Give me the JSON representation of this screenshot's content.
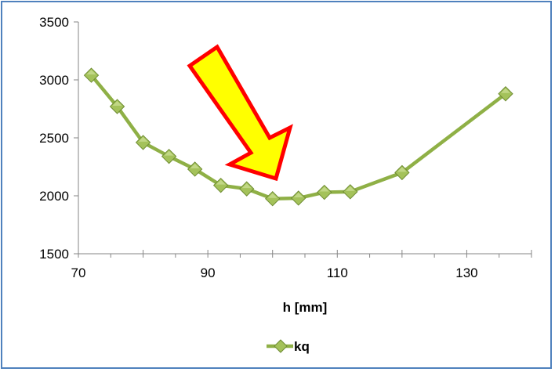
{
  "chart_data": {
    "type": "line",
    "xlabel": "h [mm]",
    "ylabel": "",
    "xlim": [
      70,
      140
    ],
    "ylim": [
      1500,
      3500
    ],
    "xticks": [
      70,
      90,
      110,
      130
    ],
    "xtick_labels": [
      "70",
      "90",
      "110",
      "130"
    ],
    "yticks": [
      1500,
      2000,
      2500,
      3000,
      3500
    ],
    "ytick_labels": [
      "1500",
      "2000",
      "2500",
      "3000",
      "3500"
    ],
    "grid": false,
    "legend_position": "bottom",
    "series": [
      {
        "name": "kq",
        "color": "#8fb046",
        "marker": "diamond",
        "x": [
          72,
          76,
          80,
          84,
          88,
          92,
          96,
          100,
          104,
          108,
          112,
          120,
          136
        ],
        "y": [
          3040,
          2770,
          2460,
          2340,
          2230,
          2090,
          2060,
          1975,
          1980,
          2030,
          2035,
          2200,
          2880
        ]
      }
    ],
    "annotation": {
      "type": "arrow",
      "fill": "#ffff00",
      "stroke": "#ff0000",
      "points_to": "minimum"
    }
  }
}
